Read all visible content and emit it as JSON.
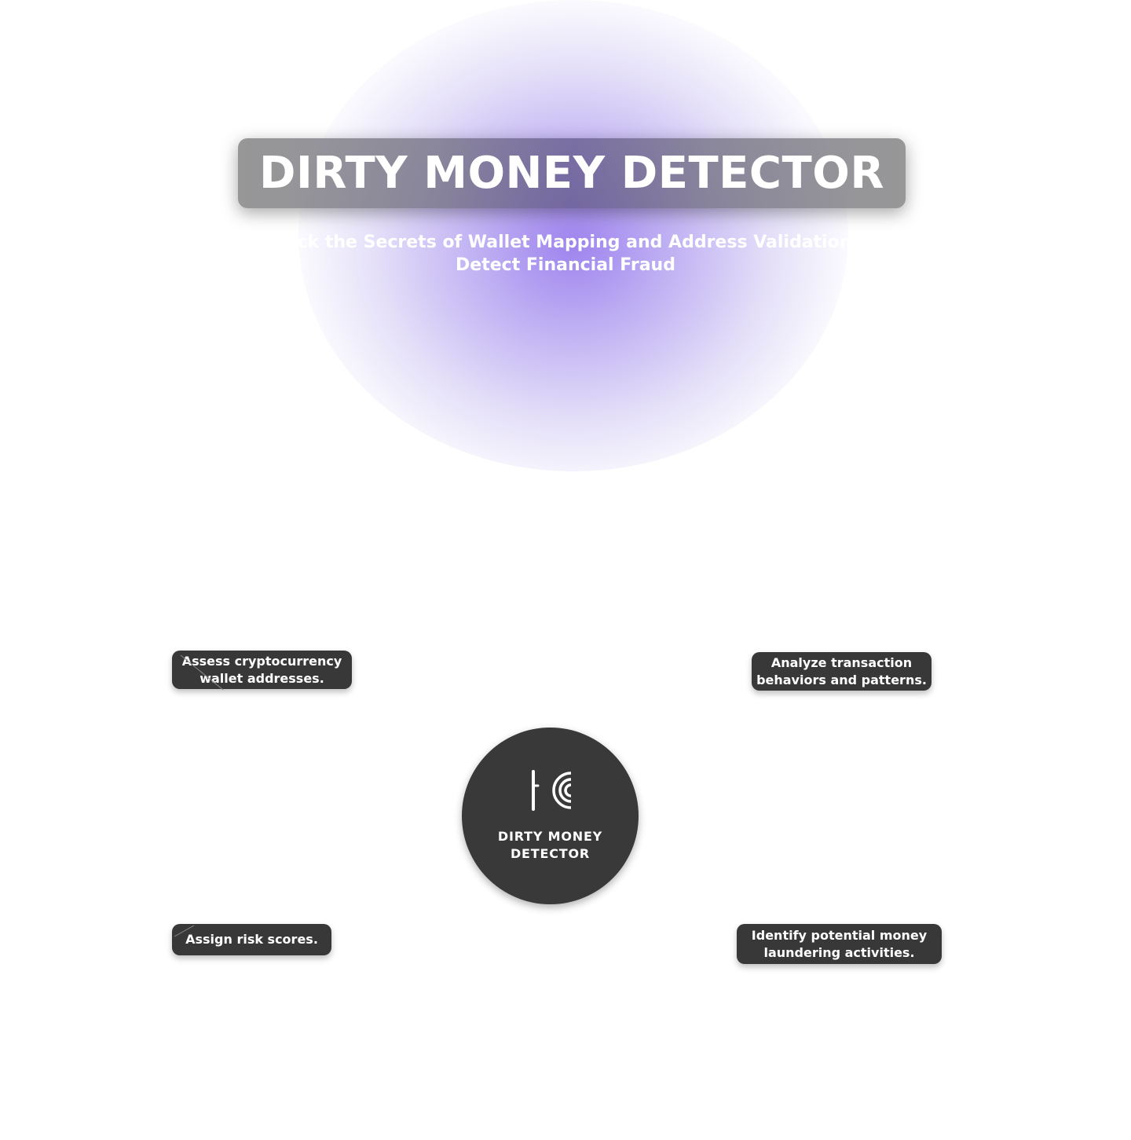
{
  "header": {
    "title": "DIRTY MONEY DETECTOR",
    "subtitle": "Unlock the Secrets of Wallet Mapping and Address Validation to Detect Financial Fraud"
  },
  "hub": {
    "logo_icon": "detector-logo-icon",
    "label_line1": "DIRTY MONEY",
    "label_line2": "DETECTOR"
  },
  "features": {
    "top_left": {
      "line1": "Assess cryptocurrency",
      "line2": "wallet addresses."
    },
    "top_right": {
      "line1": "Analyze transaction",
      "line2": "behaviors and patterns."
    },
    "bottom_left": {
      "line1": "Assign risk scores."
    },
    "bottom_right": {
      "line1": "Identify potential money",
      "line2": "laundering activities."
    }
  },
  "colors": {
    "glow": "#8c6eeb",
    "node_background": "#383838",
    "hub_background": "#393939",
    "text": "#ffffff"
  }
}
